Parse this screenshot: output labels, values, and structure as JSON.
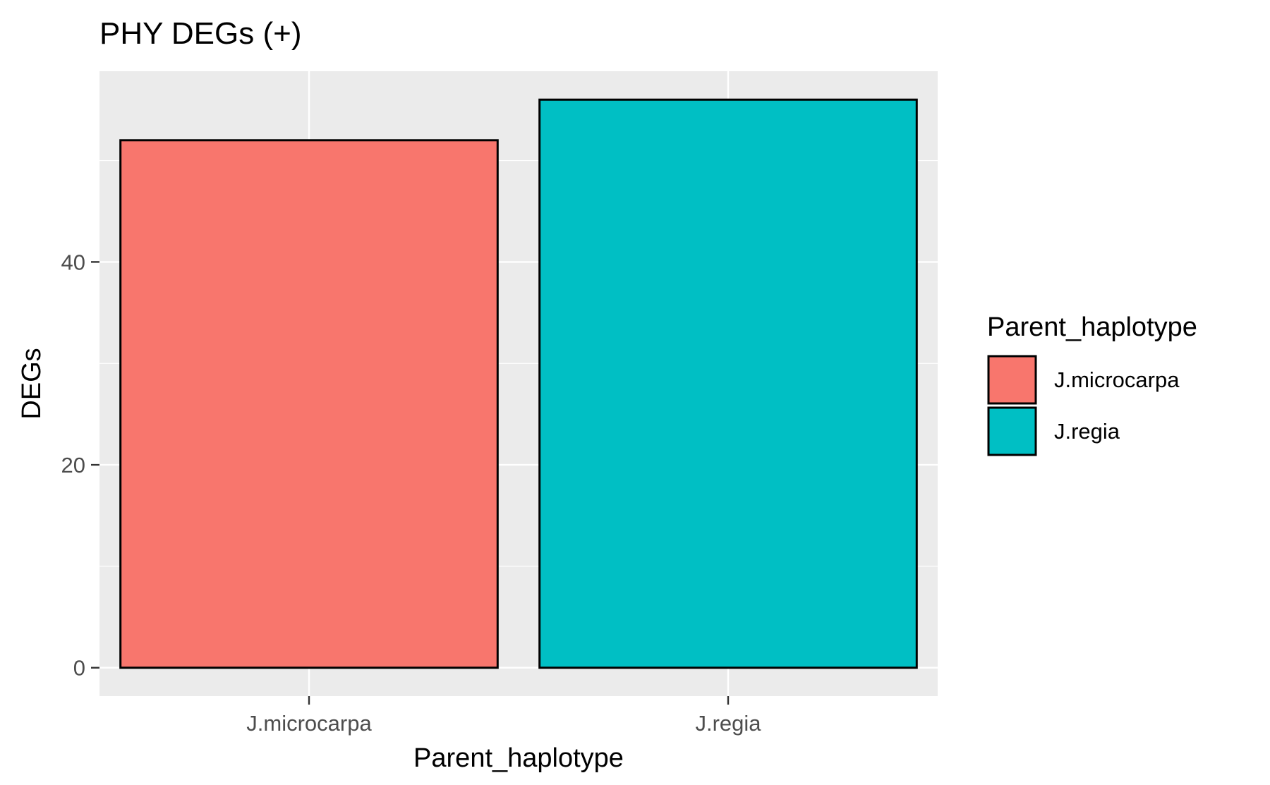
{
  "chart_data": {
    "type": "bar",
    "title": "PHY DEGs (+)",
    "xlabel": "Parent_haplotype",
    "ylabel": "DEGs",
    "categories": [
      "J.microcarpa",
      "J.regia"
    ],
    "values": [
      52,
      56
    ],
    "colors": [
      "#F8766D",
      "#00BFC4"
    ],
    "bar_outline": "#000000",
    "panel_background": "#EBEBEB",
    "grid": true,
    "grid_color": "#FFFFFF",
    "ylim": [
      -2.8,
      58.8
    ],
    "yticks": [
      0,
      20,
      40
    ],
    "ytick_labels": [
      "0",
      "20",
      "40"
    ],
    "legend": {
      "title": "Parent_haplotype",
      "position": "right",
      "entries": [
        "J.microcarpa",
        "J.regia"
      ]
    }
  }
}
